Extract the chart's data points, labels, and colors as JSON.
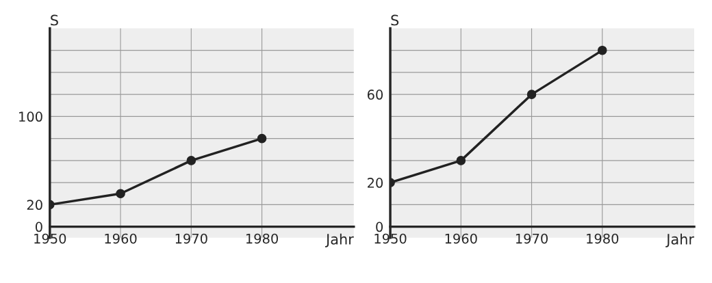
{
  "chart_data": [
    {
      "type": "line",
      "ylabel": "S",
      "xlabel": "Jahr",
      "x": [
        1950,
        1960,
        1970,
        1980
      ],
      "values": [
        20,
        30,
        60,
        80
      ],
      "color": "#222222",
      "marker": "circle",
      "line_style": "solid",
      "grid": true,
      "xlim": [
        1950,
        1993
      ],
      "ylim": [
        -10,
        180
      ],
      "xticks": [
        1950,
        1960,
        1970,
        1980
      ],
      "yticks": [
        0,
        20,
        {
          "value": 40,
          "label": null
        },
        {
          "value": 60,
          "label": null
        },
        {
          "value": 80,
          "label": null
        },
        100,
        {
          "value": 120,
          "label": null
        },
        {
          "value": 140,
          "label": null
        },
        {
          "value": 160,
          "label": null
        }
      ]
    },
    {
      "type": "line",
      "ylabel": "S",
      "xlabel": "Jahr",
      "x": [
        1950,
        1960,
        1970,
        1980
      ],
      "values": [
        20,
        30,
        60,
        80
      ],
      "color": "#222222",
      "marker": "circle",
      "line_style": "solid",
      "grid": true,
      "xlim": [
        1950,
        1993
      ],
      "ylim": [
        -5,
        90
      ],
      "xticks": [
        1950,
        1960,
        1970,
        1980
      ],
      "yticks": [
        0,
        {
          "value": 10,
          "label": null
        },
        20,
        {
          "value": 30,
          "label": null
        },
        {
          "value": 40,
          "label": null
        },
        {
          "value": 50,
          "label": null
        },
        60,
        {
          "value": 70,
          "label": null
        },
        {
          "value": 80,
          "label": null
        }
      ]
    }
  ]
}
